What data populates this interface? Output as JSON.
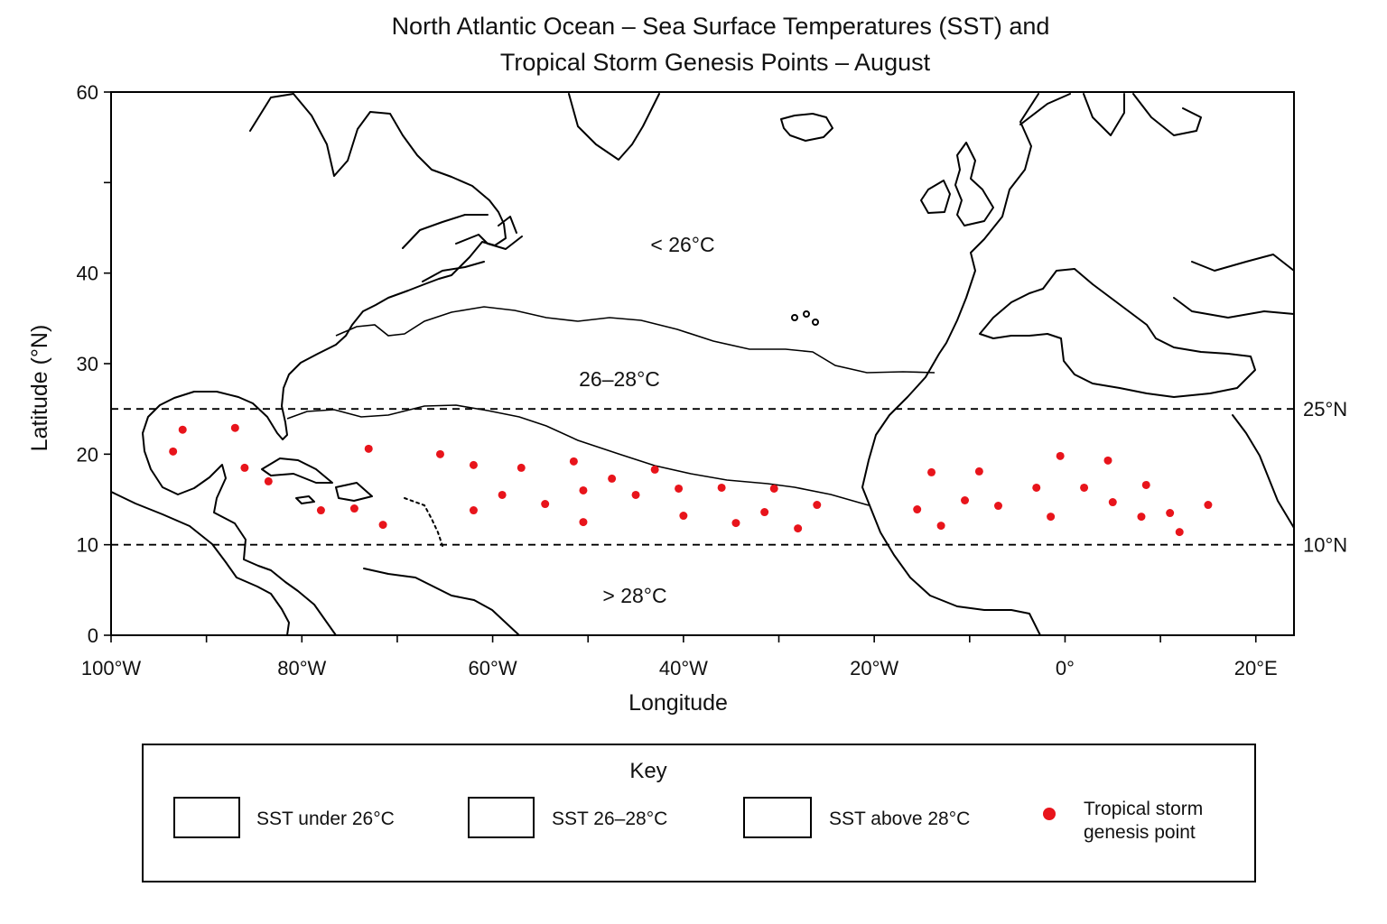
{
  "title": {
    "line1": "North Atlantic Ocean – Sea Surface Temperatures (SST) and",
    "line2": "Tropical Storm Genesis Points – August"
  },
  "axes": {
    "xlabel": "Longitude",
    "ylabel": "Latitude (°N)",
    "xlim": [
      -100,
      24
    ],
    "ylim": [
      0,
      60
    ],
    "x_ticks": [
      {
        "value": -100,
        "label": "100°W"
      },
      {
        "value": -80,
        "label": "80°W"
      },
      {
        "value": -60,
        "label": "60°W"
      },
      {
        "value": -40,
        "label": "40°W"
      },
      {
        "value": -20,
        "label": "20°W"
      },
      {
        "value": 0,
        "label": "0°"
      },
      {
        "value": 20,
        "label": "20°E"
      }
    ],
    "y_ticks": [
      {
        "value": 0,
        "label": "0"
      },
      {
        "value": 10,
        "label": "10"
      },
      {
        "value": 20,
        "label": "20"
      },
      {
        "value": 30,
        "label": "30"
      },
      {
        "value": 40,
        "label": "40"
      },
      {
        "value": 60,
        "label": "60"
      }
    ]
  },
  "latitude_lines": [
    {
      "lat": 25,
      "label": "25°N"
    },
    {
      "lat": 10,
      "label": "10°N"
    }
  ],
  "sst_zones": {
    "cool": "< 26°C",
    "mid": "26–28°C",
    "warm": "> 28°C"
  },
  "key": {
    "title": "Key",
    "sst_under_26": "SST under 26°C",
    "sst_26_28": "SST 26–28°C",
    "sst_above_28": "SST above 28°C",
    "genesis_line1": "Tropical storm",
    "genesis_line2": "genesis point"
  },
  "colors": {
    "genesis_point": "#e8141b",
    "land_outline": "#000000"
  },
  "chart_data": {
    "type": "scatter",
    "series": [
      {
        "name": "Tropical storm genesis point",
        "points": [
          [
            -93.5,
            20.3
          ],
          [
            -92.5,
            22.7
          ],
          [
            -87,
            22.9
          ],
          [
            -86,
            18.5
          ],
          [
            -83.5,
            17
          ],
          [
            -78,
            13.8
          ],
          [
            -74.5,
            14
          ],
          [
            -73,
            20.6
          ],
          [
            -71.5,
            12.2
          ],
          [
            -65.5,
            20
          ],
          [
            -62,
            18.8
          ],
          [
            -62,
            13.8
          ],
          [
            -59,
            15.5
          ],
          [
            -57,
            18.5
          ],
          [
            -54.5,
            14.5
          ],
          [
            -51.5,
            19.2
          ],
          [
            -50.5,
            12.5
          ],
          [
            -50.5,
            16
          ],
          [
            -47.5,
            17.3
          ],
          [
            -45,
            15.5
          ],
          [
            -43,
            18.3
          ],
          [
            -40.5,
            16.2
          ],
          [
            -40,
            13.2
          ],
          [
            -36,
            16.3
          ],
          [
            -34.5,
            12.4
          ],
          [
            -31.5,
            13.6
          ],
          [
            -30.5,
            16.2
          ],
          [
            -28,
            11.8
          ],
          [
            -26,
            14.4
          ],
          [
            -15.5,
            13.9
          ],
          [
            -14,
            18
          ],
          [
            -13,
            12.1
          ],
          [
            -10.5,
            14.9
          ],
          [
            -9,
            18.1
          ],
          [
            -7,
            14.3
          ],
          [
            -3,
            16.3
          ],
          [
            -1.5,
            13.1
          ],
          [
            -0.5,
            19.8
          ],
          [
            2,
            16.3
          ],
          [
            4.5,
            19.3
          ],
          [
            5,
            14.7
          ],
          [
            8,
            13.1
          ],
          [
            8.5,
            16.6
          ],
          [
            11,
            13.5
          ],
          [
            12,
            11.4
          ],
          [
            15,
            14.4
          ]
        ]
      }
    ]
  }
}
